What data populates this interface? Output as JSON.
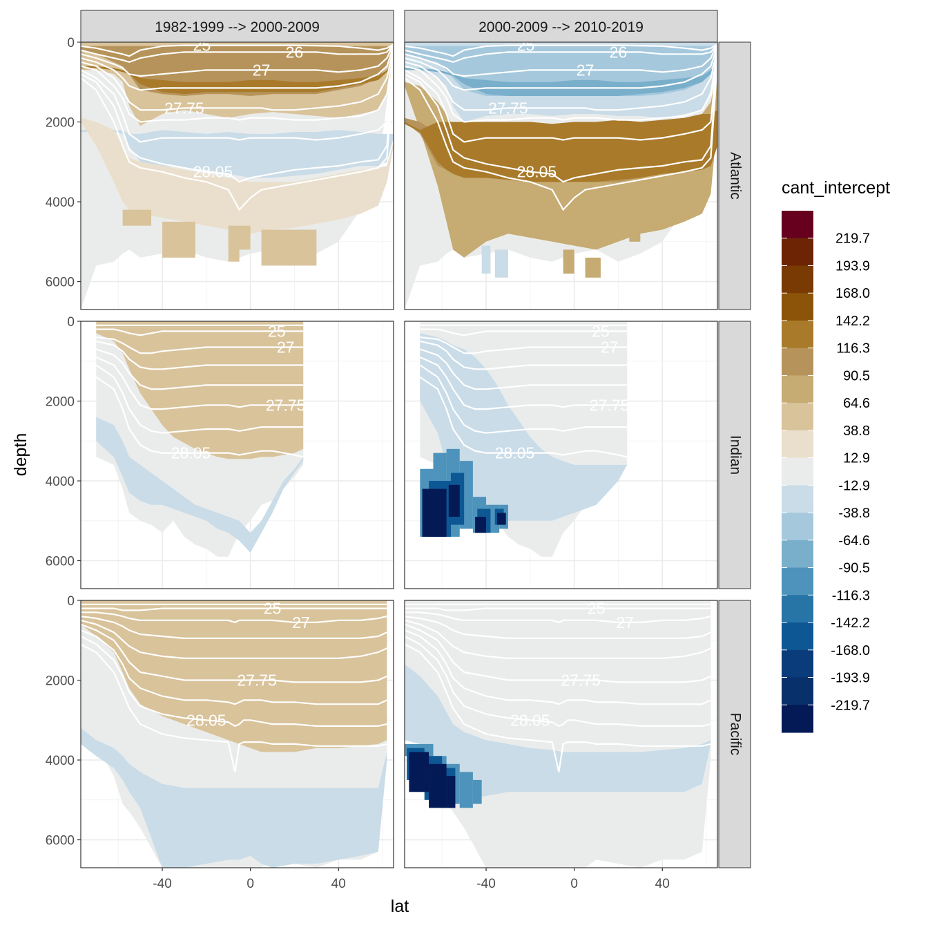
{
  "chart_data": {
    "type": "heatmap",
    "title": "",
    "xlabel": "lat",
    "ylabel": "depth",
    "xlim": [
      -77,
      65
    ],
    "ylim": [
      6700,
      0
    ],
    "x_ticks": [
      -40,
      0,
      40
    ],
    "x_tick_labels": [
      "-40",
      "0",
      "40"
    ],
    "y_ticks": [
      0,
      2000,
      4000,
      6000
    ],
    "y_tick_labels": [
      "0",
      "2000",
      "4000",
      "6000"
    ],
    "grid": true,
    "facet_columns": [
      "1982-1999 --> 2000-2009",
      "2000-2009 --> 2010-2019"
    ],
    "facet_rows": [
      "Atlantic",
      "Indian",
      "Pacific"
    ],
    "legend": {
      "title": "cant_intercept",
      "position": "right",
      "labels": [
        "219.7",
        "193.9",
        "168.0",
        "142.2",
        "116.3",
        "90.5",
        "64.6",
        "38.8",
        "12.9",
        "-12.9",
        "-38.8",
        "-64.6",
        "-90.5",
        "-116.3",
        "-142.2",
        "-168.0",
        "-193.9",
        "-219.7"
      ],
      "colors": [
        "#67001f",
        "#6d2404",
        "#7a3a03",
        "#8c5409",
        "#a87a2a",
        "#b6935a",
        "#c6ab72",
        "#d9c39b",
        "#eadfcc",
        "#eaeceb",
        "#c9dce8",
        "#a5c8dc",
        "#79afcb",
        "#4d93bb",
        "#2774a6",
        "#0d5794",
        "#0a3b7a",
        "#08306b",
        "#041a57"
      ]
    },
    "isopycnal_labels": [
      "27.75",
      "28.05",
      "27",
      "26",
      "25"
    ]
  },
  "colors": {
    "strip_fill": "#d9d9d9",
    "panel_border": "#333333",
    "grid_major": "#ebebeb",
    "contour": "#ffffff",
    "axis_text": "#4d4d4d",
    "title_text": "#000000"
  }
}
